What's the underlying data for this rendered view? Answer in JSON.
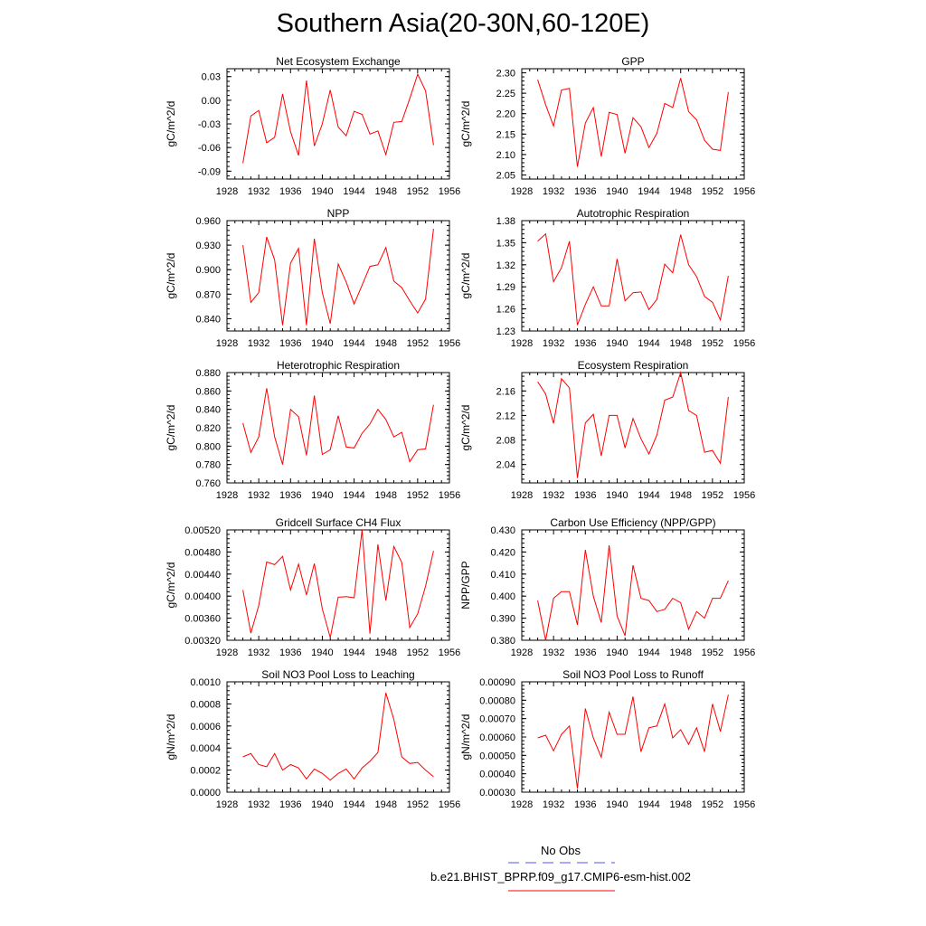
{
  "figure_title": "Southern Asia(20-30N,60-120E)",
  "line_color": "#ff0000",
  "obs_color": "#5050ff",
  "legend": {
    "obs_label": "No Obs",
    "model_label": "b.e21.BHIST_BPRP.f09_g17.CMIP6-esm-hist.002"
  },
  "chart_data": [
    {
      "type": "line",
      "title": "Net Ecosystem Exchange",
      "ylabel": "gC/m^2/d",
      "xlim": [
        1928,
        1956
      ],
      "ylim": [
        -0.1,
        0.04
      ],
      "xticks": [
        1928,
        1932,
        1936,
        1940,
        1944,
        1948,
        1952,
        1956
      ],
      "yticks": [
        "0.03",
        "0.00",
        "-0.03",
        "-0.06",
        "-0.09"
      ],
      "x": [
        1930,
        1931,
        1932,
        1933,
        1934,
        1935,
        1936,
        1937,
        1938,
        1939,
        1940,
        1941,
        1942,
        1943,
        1944,
        1945,
        1946,
        1947,
        1948,
        1949,
        1950,
        1951,
        1952,
        1953,
        1954
      ],
      "series": [
        {
          "values": [
            -0.08,
            -0.02,
            -0.013,
            -0.054,
            -0.047,
            0.008,
            -0.04,
            -0.07,
            0.025,
            -0.058,
            -0.03,
            0.013,
            -0.034,
            -0.045,
            -0.014,
            -0.018,
            -0.043,
            -0.039,
            -0.069,
            -0.028,
            -0.027,
            0.002,
            0.033,
            0.012,
            -0.057
          ]
        }
      ]
    },
    {
      "type": "line",
      "title": "GPP",
      "ylabel": "gC/m^2/d",
      "xlim": [
        1928,
        1956
      ],
      "ylim": [
        2.04,
        2.31
      ],
      "xticks": [
        1928,
        1932,
        1936,
        1940,
        1944,
        1948,
        1952,
        1956
      ],
      "yticks": [
        "2.30",
        "2.25",
        "2.20",
        "2.15",
        "2.10",
        "2.05"
      ],
      "x": [
        1930,
        1931,
        1932,
        1933,
        1934,
        1935,
        1936,
        1937,
        1938,
        1939,
        1940,
        1941,
        1942,
        1943,
        1944,
        1945,
        1946,
        1947,
        1948,
        1949,
        1950,
        1951,
        1952,
        1953,
        1954
      ],
      "series": [
        {
          "values": [
            2.283,
            2.222,
            2.17,
            2.258,
            2.262,
            2.07,
            2.177,
            2.215,
            2.095,
            2.203,
            2.198,
            2.103,
            2.19,
            2.168,
            2.117,
            2.152,
            2.225,
            2.215,
            2.287,
            2.205,
            2.185,
            2.135,
            2.113,
            2.11,
            2.253
          ]
        }
      ]
    },
    {
      "type": "line",
      "title": "NPP",
      "ylabel": "gC/m^2/d",
      "xlim": [
        1928,
        1956
      ],
      "ylim": [
        0.825,
        0.96
      ],
      "xticks": [
        1928,
        1932,
        1936,
        1940,
        1944,
        1948,
        1952,
        1956
      ],
      "yticks": [
        "0.960",
        "0.930",
        "0.900",
        "0.870",
        "0.840"
      ],
      "x": [
        1930,
        1931,
        1932,
        1933,
        1934,
        1935,
        1936,
        1937,
        1938,
        1939,
        1940,
        1941,
        1942,
        1943,
        1944,
        1945,
        1946,
        1947,
        1948,
        1949,
        1950,
        1951,
        1952,
        1953,
        1954
      ],
      "series": [
        {
          "values": [
            0.93,
            0.86,
            0.872,
            0.94,
            0.912,
            0.832,
            0.908,
            0.926,
            0.832,
            0.938,
            0.872,
            0.834,
            0.907,
            0.885,
            0.858,
            0.881,
            0.904,
            0.906,
            0.927,
            0.886,
            0.878,
            0.862,
            0.847,
            0.864,
            0.95
          ]
        }
      ]
    },
    {
      "type": "line",
      "title": "Autotrophic Respiration",
      "ylabel": "gC/m^2/d",
      "xlim": [
        1928,
        1956
      ],
      "ylim": [
        1.23,
        1.38
      ],
      "xticks": [
        1928,
        1932,
        1936,
        1940,
        1944,
        1948,
        1952,
        1956
      ],
      "yticks": [
        "1.38",
        "1.35",
        "1.32",
        "1.29",
        "1.26",
        "1.23"
      ],
      "x": [
        1930,
        1931,
        1932,
        1933,
        1934,
        1935,
        1936,
        1937,
        1938,
        1939,
        1940,
        1941,
        1942,
        1943,
        1944,
        1945,
        1946,
        1947,
        1948,
        1949,
        1950,
        1951,
        1952,
        1953,
        1954
      ],
      "series": [
        {
          "values": [
            1.352,
            1.362,
            1.297,
            1.316,
            1.352,
            1.238,
            1.266,
            1.29,
            1.264,
            1.264,
            1.328,
            1.271,
            1.282,
            1.283,
            1.259,
            1.273,
            1.321,
            1.309,
            1.361,
            1.32,
            1.304,
            1.277,
            1.269,
            1.245,
            1.305
          ]
        }
      ]
    },
    {
      "type": "line",
      "title": "Heterotrophic Respiration",
      "ylabel": "gC/m^2/d",
      "xlim": [
        1928,
        1956
      ],
      "ylim": [
        0.76,
        0.88
      ],
      "xticks": [
        1928,
        1932,
        1936,
        1940,
        1944,
        1948,
        1952,
        1956
      ],
      "yticks": [
        "0.880",
        "0.860",
        "0.840",
        "0.820",
        "0.800",
        "0.780",
        "0.760"
      ],
      "x": [
        1930,
        1931,
        1932,
        1933,
        1934,
        1935,
        1936,
        1937,
        1938,
        1939,
        1940,
        1941,
        1942,
        1943,
        1944,
        1945,
        1946,
        1947,
        1948,
        1949,
        1950,
        1951,
        1952,
        1953,
        1954
      ],
      "series": [
        {
          "values": [
            0.825,
            0.793,
            0.81,
            0.863,
            0.81,
            0.78,
            0.84,
            0.832,
            0.79,
            0.855,
            0.791,
            0.796,
            0.833,
            0.799,
            0.798,
            0.814,
            0.824,
            0.84,
            0.829,
            0.81,
            0.815,
            0.783,
            0.796,
            0.797,
            0.845
          ]
        }
      ]
    },
    {
      "type": "line",
      "title": "Ecosystem Respiration",
      "ylabel": "gC/m^2/d",
      "xlim": [
        1928,
        1956
      ],
      "ylim": [
        2.01,
        2.19
      ],
      "xticks": [
        1928,
        1932,
        1936,
        1940,
        1944,
        1948,
        1952,
        1956
      ],
      "yticks": [
        "2.16",
        "2.12",
        "2.08",
        "2.04"
      ],
      "x": [
        1930,
        1931,
        1932,
        1933,
        1934,
        1935,
        1936,
        1937,
        1938,
        1939,
        1940,
        1941,
        1942,
        1943,
        1944,
        1945,
        1946,
        1947,
        1948,
        1949,
        1950,
        1951,
        1952,
        1953,
        1954
      ],
      "series": [
        {
          "values": [
            2.175,
            2.155,
            2.107,
            2.18,
            2.165,
            2.018,
            2.108,
            2.122,
            2.054,
            2.12,
            2.12,
            2.067,
            2.115,
            2.082,
            2.057,
            2.088,
            2.145,
            2.15,
            2.19,
            2.128,
            2.12,
            2.06,
            2.063,
            2.042,
            2.15
          ]
        }
      ]
    },
    {
      "type": "line",
      "title": "Gridcell Surface CH4 Flux",
      "ylabel": "gC/m^2/d",
      "xlim": [
        1928,
        1956
      ],
      "ylim": [
        0.0032,
        0.0052
      ],
      "xticks": [
        1928,
        1932,
        1936,
        1940,
        1944,
        1948,
        1952,
        1956
      ],
      "yticks": [
        "0.00520",
        "0.00480",
        "0.00440",
        "0.00400",
        "0.00360",
        "0.00320"
      ],
      "x": [
        1930,
        1931,
        1932,
        1933,
        1934,
        1935,
        1936,
        1937,
        1938,
        1939,
        1940,
        1941,
        1942,
        1943,
        1944,
        1945,
        1946,
        1947,
        1948,
        1949,
        1950,
        1951,
        1952,
        1953,
        1954
      ],
      "series": [
        {
          "values": [
            0.00411,
            0.00333,
            0.00383,
            0.00462,
            0.00457,
            0.00472,
            0.00411,
            0.00458,
            0.00402,
            0.00459,
            0.00377,
            0.00325,
            0.00398,
            0.00399,
            0.00397,
            0.0052,
            0.00332,
            0.00494,
            0.00392,
            0.0049,
            0.00461,
            0.00343,
            0.00368,
            0.00418,
            0.00482
          ]
        }
      ]
    },
    {
      "type": "line",
      "title": "Carbon Use Efficiency (NPP/GPP)",
      "ylabel": "NPP/GPP",
      "xlim": [
        1928,
        1956
      ],
      "ylim": [
        0.38,
        0.43
      ],
      "xticks": [
        1928,
        1932,
        1936,
        1940,
        1944,
        1948,
        1952,
        1956
      ],
      "yticks": [
        "0.430",
        "0.420",
        "0.410",
        "0.400",
        "0.390",
        "0.380"
      ],
      "x": [
        1930,
        1931,
        1932,
        1933,
        1934,
        1935,
        1936,
        1937,
        1938,
        1939,
        1940,
        1941,
        1942,
        1943,
        1944,
        1945,
        1946,
        1947,
        1948,
        1949,
        1950,
        1951,
        1952,
        1953,
        1954
      ],
      "series": [
        {
          "values": [
            0.398,
            0.38,
            0.399,
            0.402,
            0.402,
            0.387,
            0.421,
            0.4,
            0.388,
            0.423,
            0.391,
            0.382,
            0.414,
            0.399,
            0.398,
            0.393,
            0.394,
            0.399,
            0.397,
            0.385,
            0.393,
            0.39,
            0.399,
            0.399,
            0.407
          ]
        }
      ]
    },
    {
      "type": "line",
      "title": "Soil NO3 Pool Loss to Leaching",
      "ylabel": "gN/m^2/d",
      "xlim": [
        1928,
        1956
      ],
      "ylim": [
        0,
        0.001
      ],
      "xticks": [
        1928,
        1932,
        1936,
        1940,
        1944,
        1948,
        1952,
        1956
      ],
      "yticks": [
        "0.0010",
        "0.0008",
        "0.0006",
        "0.0004",
        "0.0002",
        "0.0000"
      ],
      "x": [
        1930,
        1931,
        1932,
        1933,
        1934,
        1935,
        1936,
        1937,
        1938,
        1939,
        1940,
        1941,
        1942,
        1943,
        1944,
        1945,
        1946,
        1947,
        1948,
        1949,
        1950,
        1951,
        1952,
        1953,
        1954
      ],
      "series": [
        {
          "values": [
            0.00032,
            0.00035,
            0.00025,
            0.00023,
            0.00035,
            0.0002,
            0.00025,
            0.00022,
            0.00012,
            0.00021,
            0.00017,
            0.00011,
            0.00017,
            0.00021,
            0.00012,
            0.00022,
            0.00028,
            0.00036,
            0.0009,
            0.00066,
            0.00032,
            0.00026,
            0.00027,
            0.0002,
            0.00014
          ]
        }
      ]
    },
    {
      "type": "line",
      "title": "Soil NO3 Pool Loss to Runoff",
      "ylabel": "gN/m^2/d",
      "xlim": [
        1928,
        1956
      ],
      "ylim": [
        0.0003,
        0.0009
      ],
      "xticks": [
        1928,
        1932,
        1936,
        1940,
        1944,
        1948,
        1952,
        1956
      ],
      "yticks": [
        "0.00090",
        "0.00080",
        "0.00070",
        "0.00060",
        "0.00050",
        "0.00040",
        "0.00030"
      ],
      "x": [
        1930,
        1931,
        1932,
        1933,
        1934,
        1935,
        1936,
        1937,
        1938,
        1939,
        1940,
        1941,
        1942,
        1943,
        1944,
        1945,
        1946,
        1947,
        1948,
        1949,
        1950,
        1951,
        1952,
        1953,
        1954
      ],
      "series": [
        {
          "values": [
            0.000595,
            0.00061,
            0.000525,
            0.000615,
            0.00066,
            0.00032,
            0.000755,
            0.000595,
            0.00049,
            0.000735,
            0.000615,
            0.000615,
            0.00082,
            0.00052,
            0.00065,
            0.00066,
            0.00078,
            0.000595,
            0.00064,
            0.00056,
            0.00065,
            0.00052,
            0.00078,
            0.00063,
            0.00083
          ]
        }
      ]
    }
  ]
}
